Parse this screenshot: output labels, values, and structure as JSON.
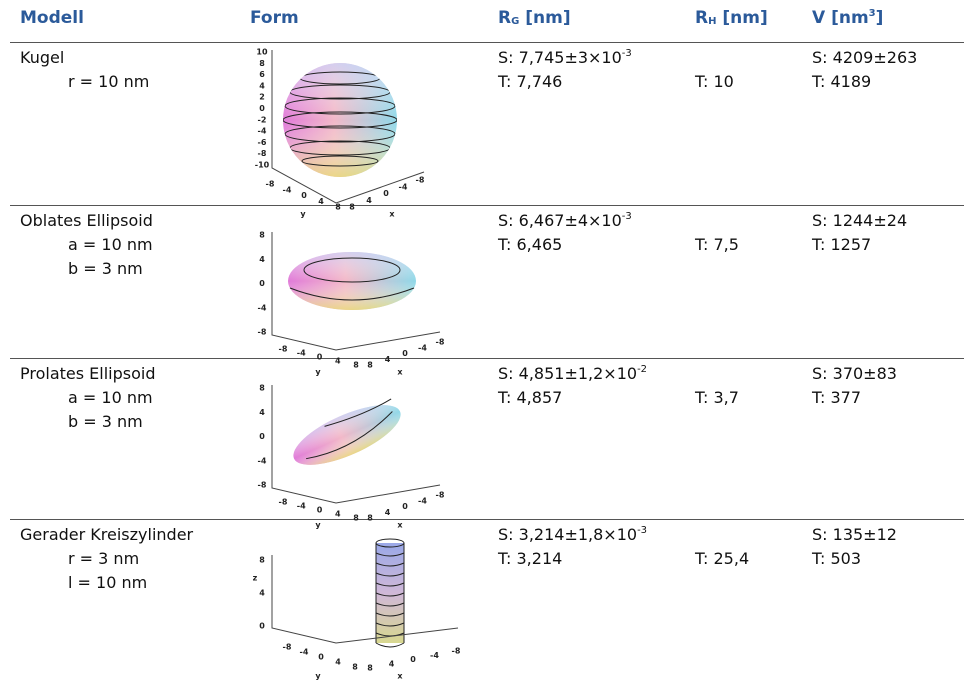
{
  "header": {
    "modell": "Modell",
    "form": "Form",
    "rg": {
      "main": "R",
      "sub": "G",
      "unit": " [nm]"
    },
    "rh": {
      "main": "R",
      "sub": "H",
      "unit": " [nm]"
    },
    "v": {
      "main": "V [nm",
      "sup": "3",
      "end": "]"
    }
  },
  "rows": [
    {
      "model": "Kugel",
      "params": [
        "r = 10 nm"
      ],
      "rg": {
        "s": "S: 7,745±3×10",
        "exp": "-3",
        "t": "T: 7,746"
      },
      "rh": "T: 10",
      "v": {
        "s": "S: 4209±263",
        "t": "T: 4189"
      },
      "plot": {
        "z": [
          10,
          8,
          6,
          4,
          2,
          0,
          -2,
          -4,
          -6,
          -8,
          -10
        ],
        "y": [
          -8,
          -4,
          0,
          4,
          8
        ],
        "x": [
          8,
          4,
          0,
          -4,
          -8
        ],
        "ylabel": "y",
        "xlabel": "x"
      }
    },
    {
      "model": "Oblates Ellipsoid",
      "params": [
        "a = 10 nm",
        "b = 3 nm"
      ],
      "rg": {
        "s": "S: 6,467±4×10",
        "exp": "-3",
        "t": "T: 6,465"
      },
      "rh": "T: 7,5",
      "v": {
        "s": "S: 1244±24",
        "t": "T: 1257"
      },
      "plot": {
        "z": [
          8,
          4,
          0,
          -4,
          -8
        ],
        "y": [
          -8,
          -4,
          0,
          4,
          8
        ],
        "x": [
          8,
          4,
          0,
          -4,
          -8
        ],
        "ylabel": "y",
        "xlabel": "x"
      }
    },
    {
      "model": "Prolates Ellipsoid",
      "params": [
        "a = 10 nm",
        "b = 3 nm"
      ],
      "rg": {
        "s": "S: 4,851±1,2×10",
        "exp": "-2",
        "t": "T: 4,857"
      },
      "rh": "T: 3,7",
      "v": {
        "s": "S: 370±83",
        "t": "T: 377"
      },
      "plot": {
        "z": [
          8,
          4,
          0,
          -4,
          -8
        ],
        "y": [
          -8,
          -4,
          0,
          4,
          8
        ],
        "x": [
          8,
          4,
          0,
          -4,
          -8
        ],
        "ylabel": "y",
        "xlabel": "x"
      }
    },
    {
      "model": "Gerader Kreiszylinder",
      "params": [
        "r = 3 nm",
        "l = 10 nm"
      ],
      "rg": {
        "s": "S: 3,214±1,8×10",
        "exp": "-3",
        "t": "T: 3,214"
      },
      "rh": "T: 25,4",
      "v": {
        "s": "S: 135±12",
        "t": "T: 503"
      },
      "plot": {
        "z": [
          8,
          4,
          0
        ],
        "zlabel": "z",
        "y": [
          -8,
          -4,
          0,
          4,
          8
        ],
        "x": [
          8,
          4,
          0,
          -4,
          -8
        ],
        "ylabel": "y",
        "xlabel": "x"
      }
    }
  ]
}
